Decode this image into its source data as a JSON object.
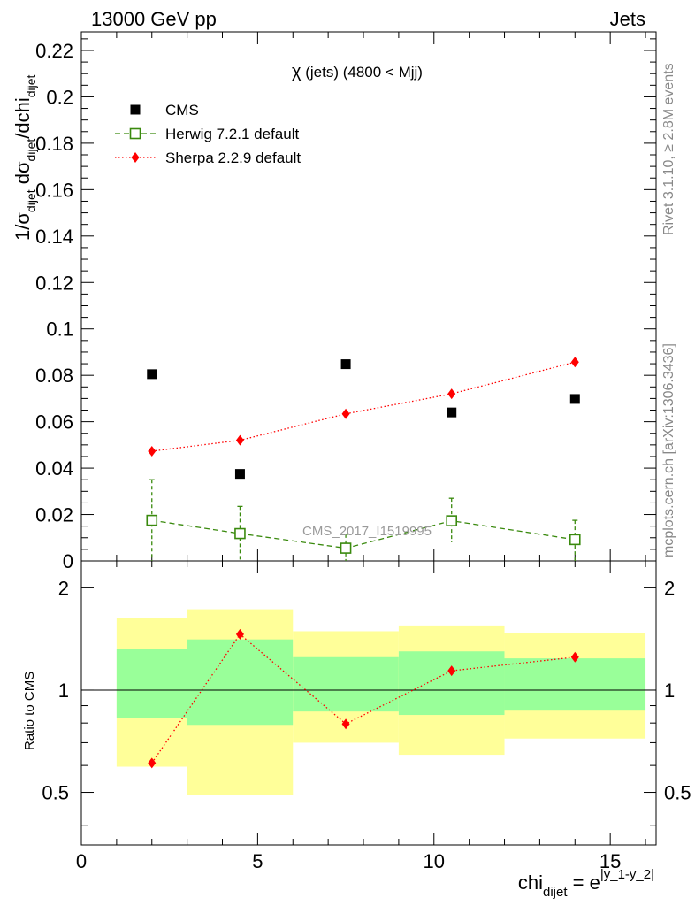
{
  "header": {
    "left": "13000 GeV pp",
    "right": "Jets"
  },
  "side_labels": {
    "rivet": "Rivet 3.1.10, ≥ 2.8M events",
    "mcplots": "mcplots.cern.ch [arXiv:1306.3436]"
  },
  "watermark": "CMS_2017_I1519995",
  "annotation": {
    "chi": "χ",
    "rest": " (jets) (4800 < Mjj)"
  },
  "ylabel_top": {
    "a": "1/σ",
    "a_sub": "dijet",
    "b": " dσ",
    "b_sub": "dijet",
    "c": "/dchi",
    "c_sub": "dijet"
  },
  "ylabel_bottom": "Ratio to CMS",
  "xlabel": {
    "base": "chi",
    "sub": "dijet",
    "eq": " = e",
    "sup": "|y_1-y_2|"
  },
  "legend": [
    {
      "label": "CMS",
      "marker": "square-filled",
      "color": "#000000"
    },
    {
      "label": "Herwig 7.2.1 default",
      "marker": "square-open",
      "color": "#3a8a0e"
    },
    {
      "label": "Sherpa 2.2.9 default",
      "marker": "diamond",
      "color": "#ff0000"
    }
  ],
  "chart_data": {
    "type": "scatter",
    "x_ticks": [
      "0",
      "5",
      "10",
      "15"
    ],
    "top_y_ticks": [
      "0",
      "0.02",
      "0.04",
      "0.06",
      "0.08",
      "0.1",
      "0.12",
      "0.14",
      "0.16",
      "0.18",
      "0.2",
      "0.22"
    ],
    "ratio_y_ticks": [
      "0.5",
      "1",
      "2"
    ],
    "xlim": [
      0,
      16.3
    ],
    "ylim_top": [
      0,
      0.228
    ],
    "ylim_ratio": [
      0.35,
      2.4
    ],
    "ratio_scale": "log",
    "bins": [
      [
        1,
        3
      ],
      [
        3,
        6
      ],
      [
        6,
        9
      ],
      [
        9,
        12
      ],
      [
        12,
        16
      ]
    ],
    "x": [
      2,
      4.5,
      7.5,
      10.5,
      14
    ],
    "series": [
      {
        "name": "CMS",
        "color": "#000000",
        "marker": "square-filled",
        "values": [
          0.0805,
          0.0375,
          0.0848,
          0.064,
          0.0698
        ]
      },
      {
        "name": "Herwig 7.2.1 default",
        "color": "#3a8a0e",
        "marker": "square-open",
        "line": "dashed",
        "values": [
          0.0175,
          0.0118,
          0.0055,
          0.0173,
          0.0092
        ],
        "err_up": [
          0.035,
          0.0235,
          0.0115,
          0.027,
          0.0175
        ],
        "err_down": [
          0.0,
          0.0,
          0.0,
          0.008,
          0.0
        ]
      },
      {
        "name": "Sherpa 2.2.9 default",
        "color": "#ff0000",
        "marker": "diamond",
        "line": "dotted",
        "values": [
          0.0473,
          0.052,
          0.0634,
          0.072,
          0.0857
        ]
      }
    ],
    "ratio": {
      "values": [
        0.61,
        1.46,
        0.795,
        1.14,
        1.25
      ],
      "band_green": [
        [
          0.83,
          1.32
        ],
        [
          0.79,
          1.41
        ],
        [
          0.865,
          1.25
        ],
        [
          0.845,
          1.3
        ],
        [
          0.87,
          1.24
        ]
      ],
      "band_yellow": [
        [
          0.595,
          1.63
        ],
        [
          0.49,
          1.73
        ],
        [
          0.7,
          1.49
        ],
        [
          0.645,
          1.55
        ],
        [
          0.72,
          1.47
        ]
      ]
    }
  }
}
